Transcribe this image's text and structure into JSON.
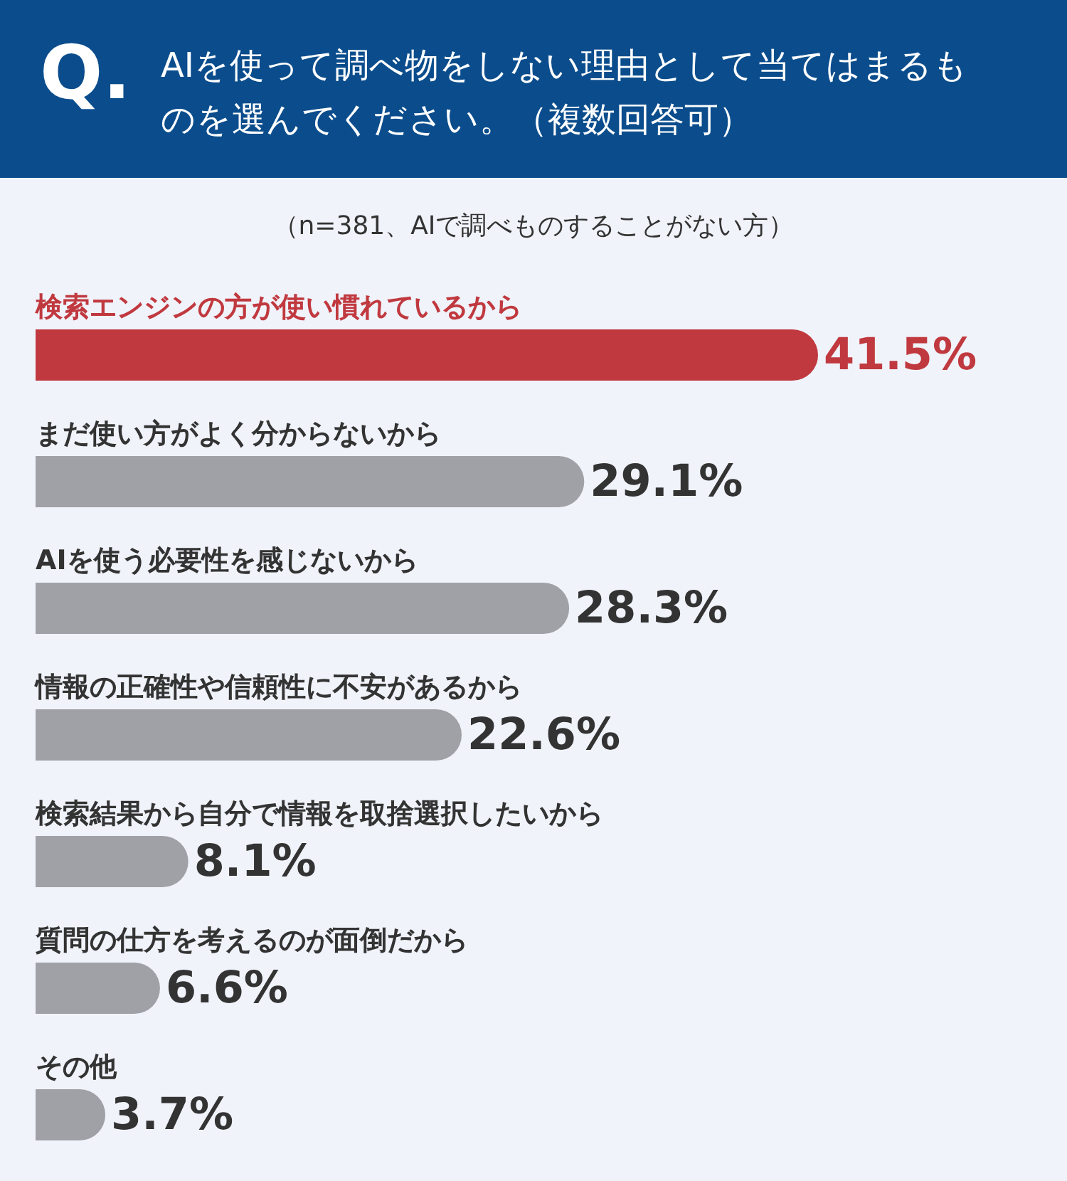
{
  "chart_data": {
    "type": "bar",
    "orientation": "horizontal",
    "title": "AIを使って調べ物をしない理由として当てはまるものを選んでください。（複数回答可）",
    "subtitle": "（n=381、AIで調べものすることがない方）",
    "annotations": [
      "Q."
    ],
    "categories": [
      "検索エンジンの方が使い慣れているから",
      "まだ使い方がよく分からないから",
      "AIを使う必要性を感じないから",
      "情報の正確性や信頼性に不安があるから",
      "検索結果から自分で情報を取捨選択したいから",
      "質問の仕方を考えるのが面倒だから",
      "その他"
    ],
    "values": [
      41.5,
      29.1,
      28.3,
      22.6,
      8.1,
      6.6,
      3.7
    ],
    "value_labels": [
      "41.5%",
      "29.1%",
      "28.3%",
      "22.6%",
      "8.1%",
      "6.6%",
      "3.7%"
    ],
    "colors": [
      "#c0393f",
      "#a0a1a6",
      "#a0a1a6",
      "#a0a1a6",
      "#a0a1a6",
      "#a0a1a6",
      "#a0a1a6"
    ]
  }
}
